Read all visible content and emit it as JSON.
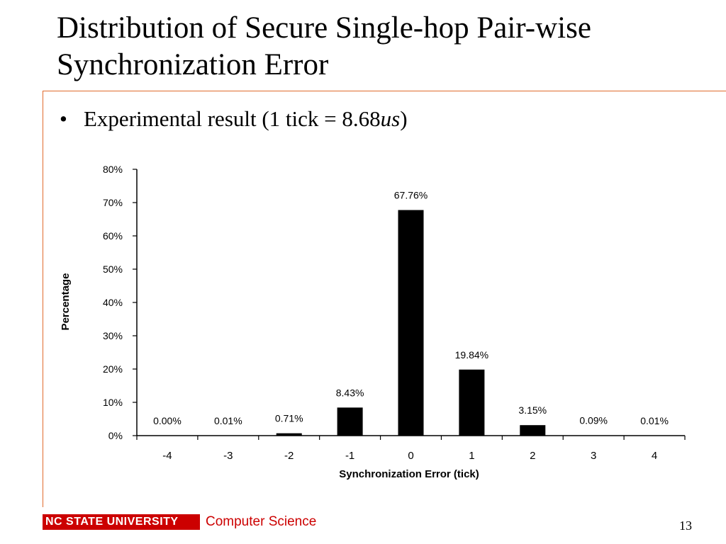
{
  "slide": {
    "title": "Distribution of Secure Single-hop Pair-wise Synchronization Error",
    "bullet_prefix": "Experimental result (1 tick = 8.68",
    "bullet_unit": "us",
    "bullet_suffix": ")",
    "footer_logo": "NC STATE UNIVERSITY",
    "footer_dept": "Computer Science",
    "page_number": "13",
    "accent_color": "#cc0000",
    "rule_color": "#e06a2c"
  },
  "chart_data": {
    "type": "bar",
    "categories": [
      "-4",
      "-3",
      "-2",
      "-1",
      "0",
      "1",
      "2",
      "3",
      "4"
    ],
    "values": [
      0.0,
      0.01,
      0.71,
      8.43,
      67.76,
      19.84,
      3.15,
      0.09,
      0.01
    ],
    "data_labels": [
      "0.00%",
      "0.01%",
      "0.71%",
      "8.43%",
      "67.76%",
      "19.84%",
      "3.15%",
      "0.09%",
      "0.01%"
    ],
    "xlabel": "Synchronization Error (tick)",
    "ylabel": "Percentage",
    "ylim": [
      0,
      80
    ],
    "yticks": [
      "0%",
      "10%",
      "20%",
      "30%",
      "40%",
      "50%",
      "60%",
      "70%",
      "80%"
    ],
    "grid": false,
    "bar_color": "#000000"
  }
}
